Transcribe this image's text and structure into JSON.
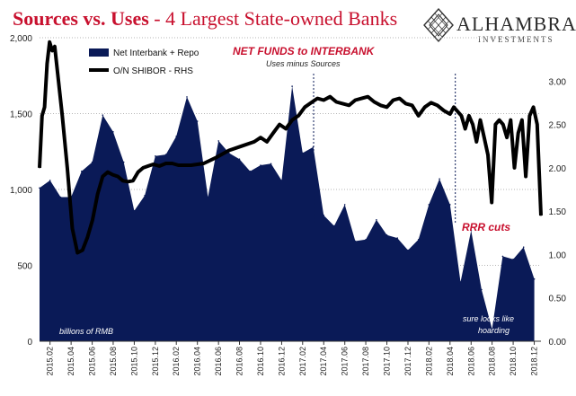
{
  "header": {
    "title_main": "Sources vs. Uses",
    "title_sub": " - 4 Largest State-owned Banks"
  },
  "logo": {
    "brand": "ALHAMBRA",
    "tagline": "INVESTMENTS",
    "icon": "diamond-lattice-icon"
  },
  "chart_data": {
    "type": "area",
    "series": [
      {
        "name": "Net Interbank + Repo",
        "color": "#0a1a57",
        "axis": "left",
        "style": "area",
        "x": [
          2015.0,
          2015.083,
          2015.167,
          2015.25,
          2015.333,
          2015.417,
          2015.5,
          2015.583,
          2015.667,
          2015.75,
          2015.833,
          2015.917,
          2016.0,
          2016.083,
          2016.167,
          2016.25,
          2016.333,
          2016.417,
          2016.5,
          2016.583,
          2016.667,
          2016.75,
          2016.833,
          2016.917,
          2017.0,
          2017.083,
          2017.167,
          2017.25,
          2017.333,
          2017.417,
          2017.5,
          2017.583,
          2017.667,
          2017.75,
          2017.833,
          2017.917,
          2018.0,
          2018.083,
          2018.167,
          2018.25,
          2018.333,
          2018.417,
          2018.5,
          2018.583,
          2018.667,
          2018.75,
          2018.833,
          2018.917
        ],
        "values": [
          1010,
          1060,
          950,
          950,
          1120,
          1180,
          1490,
          1380,
          1180,
          860,
          960,
          1220,
          1230,
          1350,
          1610,
          1450,
          950,
          1320,
          1240,
          1200,
          1120,
          1160,
          1170,
          1060,
          1680,
          1240,
          1280,
          830,
          760,
          900,
          660,
          670,
          800,
          700,
          680,
          600,
          670,
          900,
          1070,
          900,
          390,
          730,
          340,
          80,
          560,
          540,
          620,
          410
        ]
      },
      {
        "name": "O/N SHIBOR - RHS",
        "color": "#000000",
        "axis": "right",
        "style": "line",
        "x": [
          2015.0,
          2015.02,
          2015.04,
          2015.06,
          2015.08,
          2015.1,
          2015.12,
          2015.15,
          2015.18,
          2015.22,
          2015.26,
          2015.3,
          2015.34,
          2015.38,
          2015.42,
          2015.46,
          2015.5,
          2015.54,
          2015.58,
          2015.62,
          2015.66,
          2015.7,
          2015.74,
          2015.78,
          2015.82,
          2015.86,
          2015.9,
          2015.95,
          2016.0,
          2016.05,
          2016.1,
          2016.2,
          2016.3,
          2016.4,
          2016.5,
          2016.6,
          2016.7,
          2016.75,
          2016.8,
          2016.85,
          2016.9,
          2016.95,
          2017.0,
          2017.05,
          2017.1,
          2017.15,
          2017.2,
          2017.25,
          2017.3,
          2017.35,
          2017.4,
          2017.45,
          2017.5,
          2017.55,
          2017.6,
          2017.65,
          2017.7,
          2017.75,
          2017.8,
          2017.85,
          2017.9,
          2017.95,
          2018.0,
          2018.05,
          2018.1,
          2018.15,
          2018.2,
          2018.25,
          2018.28,
          2018.31,
          2018.34,
          2018.37,
          2018.4,
          2018.43,
          2018.46,
          2018.49,
          2018.52,
          2018.55,
          2018.58,
          2018.61,
          2018.64,
          2018.67,
          2018.7,
          2018.73,
          2018.76,
          2018.79,
          2018.82,
          2018.85,
          2018.88,
          2018.91,
          2018.94,
          2018.97
        ],
        "values": [
          2.0,
          2.6,
          2.7,
          3.2,
          3.45,
          3.35,
          3.4,
          3.0,
          2.6,
          2.0,
          1.3,
          1.02,
          1.05,
          1.2,
          1.4,
          1.7,
          1.9,
          1.95,
          1.92,
          1.9,
          1.85,
          1.84,
          1.85,
          1.95,
          2.0,
          2.02,
          2.04,
          2.02,
          2.05,
          2.05,
          2.03,
          2.03,
          2.05,
          2.12,
          2.2,
          2.25,
          2.3,
          2.35,
          2.3,
          2.4,
          2.5,
          2.45,
          2.55,
          2.6,
          2.7,
          2.75,
          2.8,
          2.78,
          2.82,
          2.76,
          2.74,
          2.72,
          2.78,
          2.8,
          2.82,
          2.76,
          2.72,
          2.7,
          2.78,
          2.8,
          2.74,
          2.72,
          2.6,
          2.7,
          2.75,
          2.72,
          2.66,
          2.62,
          2.7,
          2.65,
          2.6,
          2.45,
          2.6,
          2.5,
          2.3,
          2.55,
          2.35,
          2.15,
          1.6,
          2.5,
          2.55,
          2.5,
          2.35,
          2.55,
          2.0,
          2.4,
          2.55,
          1.9,
          2.6,
          2.7,
          2.5,
          1.45
        ]
      }
    ],
    "y_left": {
      "ticks": [
        0,
        500,
        1000,
        1500,
        2000
      ],
      "tick_labels": [
        "0",
        "500",
        "1,000",
        "1,500",
        "2,000"
      ],
      "ylim": [
        0,
        2000
      ]
    },
    "y_right": {
      "ticks": [
        0,
        0.5,
        1.0,
        1.5,
        2.0,
        2.5,
        3.0
      ],
      "tick_labels": [
        "0.00",
        "0.50",
        "1.00",
        "1.50",
        "2.00",
        "2.50",
        "3.00"
      ],
      "ylim": [
        0,
        3.5
      ]
    },
    "xlim": [
      2015.0,
      2018.97
    ],
    "x_ticks": [
      2015.083,
      2015.25,
      2015.417,
      2015.583,
      2015.75,
      2015.917,
      2016.083,
      2016.25,
      2016.417,
      2016.583,
      2016.75,
      2016.917,
      2017.083,
      2017.25,
      2017.417,
      2017.583,
      2017.75,
      2017.917,
      2018.083,
      2018.25,
      2018.417,
      2018.583,
      2018.75,
      2018.917
    ],
    "x_tick_labels": [
      "2015.02",
      "2015.04",
      "2015.06",
      "2015.08",
      "2015.10",
      "2015.12",
      "2016.02",
      "2016.04",
      "2016.06",
      "2016.08",
      "2016.10",
      "2016.12",
      "2017.02",
      "2017.04",
      "2017.06",
      "2017.08",
      "2017.10",
      "2017.12",
      "2018.02",
      "2018.04",
      "2018.06",
      "2018.08",
      "2018.10",
      "2018.12"
    ],
    "grid": true,
    "legend": "top-left",
    "vlines": [
      2017.17,
      2018.292
    ],
    "annotations": {
      "net_funds": "NET FUNDS to INTERBANK",
      "uses_minus_sources": "Uses minus Sources",
      "rrr_cuts": "RRR cuts",
      "units": "billions of RMB",
      "hoarding_1": "sure looks like",
      "hoarding_2": "hoarding"
    }
  }
}
